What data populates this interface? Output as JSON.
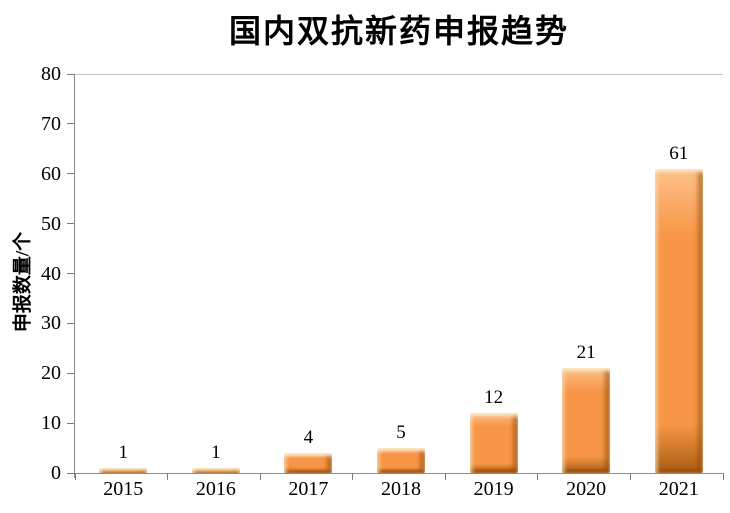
{
  "chart_data": {
    "type": "bar",
    "title": "国内双抗新药申报趋势",
    "xlabel": "",
    "ylabel": "申报数量/个",
    "categories": [
      "2015",
      "2016",
      "2017",
      "2018",
      "2019",
      "2020",
      "2021"
    ],
    "values": [
      1,
      1,
      4,
      5,
      12,
      21,
      61
    ],
    "data_labels": [
      "1",
      "1",
      "4",
      "5",
      "12",
      "21",
      "61"
    ],
    "ylim": [
      0,
      80
    ],
    "ytick_step": 10,
    "ytick_labels": [
      "0",
      "10",
      "20",
      "30",
      "40",
      "50",
      "60",
      "70",
      "80"
    ],
    "grid": "top-border-only",
    "legend_position": "none",
    "bar_color": "#F79646",
    "bar_highlight_color": "#FDC189",
    "bar_shadow_color": "#A85E13",
    "axis_color": "#8C8C8C",
    "text_color": "#000000",
    "background_color": "#FFFFFF"
  }
}
